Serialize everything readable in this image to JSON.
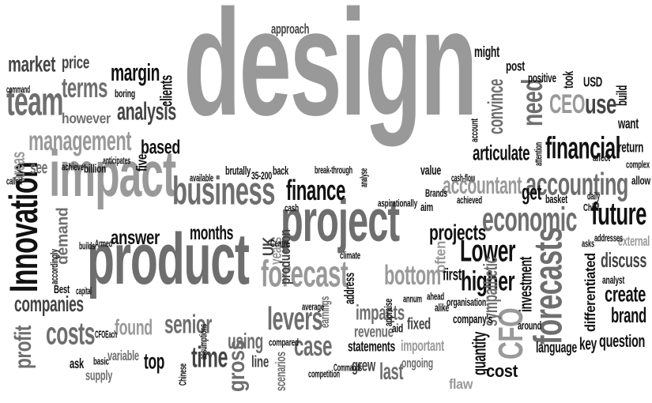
{
  "words": [
    "design",
    "impact",
    "product",
    "project",
    "business",
    "Innovation",
    "forecast",
    "team",
    "management",
    "financial",
    "forecasts",
    "accounting",
    "economic",
    "finance",
    "accountant",
    "future",
    "terms",
    "analysis",
    "margin",
    "market",
    "price",
    "however",
    "companies",
    "costs",
    "senior",
    "time",
    "gross",
    "case",
    "levers",
    "bottom",
    "higher",
    "Lower",
    "projects",
    "articulate",
    "CEO",
    "use",
    "need",
    "convince",
    "brand",
    "create",
    "discuss",
    "external",
    "question",
    "key",
    "language",
    "differentiated",
    "investment",
    "CFO",
    "sympathetic",
    "cost",
    "flaw",
    "last",
    "grew",
    "ongoing",
    "important",
    "statements",
    "revenue",
    "fixed",
    "impacts",
    "address",
    "first",
    "organisation",
    "often",
    "months",
    "answer",
    "demand",
    "profit",
    "ask",
    "supply",
    "variable",
    "top",
    "using",
    "found",
    "line",
    "scenarios",
    "UK",
    "years",
    "production",
    "earnings",
    "clients",
    "based",
    "five",
    "approach",
    "might",
    "post",
    "positive",
    "took",
    "USD",
    "build",
    "want",
    "return",
    "get",
    "value",
    "see",
    "areas",
    "quantity",
    "company's",
    "basic",
    "called",
    "achieve",
    "billion",
    "anticipates",
    "boring",
    "command",
    "capital",
    "Best",
    "accordingly",
    "builds",
    "Armed",
    "CFOEach",
    "Chinese",
    "assumptions",
    "compared",
    "average",
    "competition",
    "Centre",
    "climate",
    "brutally",
    "35-200",
    "available",
    "back",
    "break-through",
    "analyse",
    "aspirationally",
    "aim",
    "Brands",
    "achieved",
    "basket",
    "Chief",
    "daily",
    "cash-flow",
    "account",
    "affect",
    "complex",
    "allow",
    "asks",
    "addresses",
    "analyst",
    "around",
    "annum",
    "ahead",
    "alike",
    "aid",
    "appraise",
    "Commands",
    "cash",
    "attention"
  ]
}
